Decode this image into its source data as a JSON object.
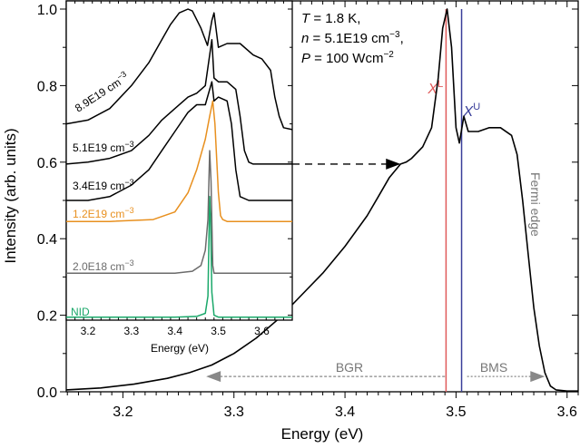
{
  "chart_data": [
    {
      "id": "main",
      "type": "line",
      "xlabel": "Energy (eV)",
      "ylabel": "Intensity (arb. units)",
      "xlim": [
        3.149,
        3.61
      ],
      "ylim": [
        0.0,
        1.0
      ],
      "xticks": [
        3.2,
        3.3,
        3.4,
        3.5,
        3.6
      ],
      "xtick_labels": [
        "3.2",
        "3.3",
        "3.4",
        "3.5",
        "3.6"
      ],
      "yticks": [
        0.0,
        0.2,
        0.4,
        0.6,
        0.8,
        1.0
      ],
      "ytick_labels": [
        "0.0",
        "0.2",
        "0.4",
        "0.6",
        "0.8",
        "1.0"
      ],
      "series": [
        {
          "name": "5.1E19 cm-3 spectrum",
          "color": "#000000",
          "x": [
            3.149,
            3.18,
            3.21,
            3.24,
            3.26,
            3.28,
            3.3,
            3.32,
            3.34,
            3.36,
            3.38,
            3.4,
            3.42,
            3.43,
            3.44,
            3.45,
            3.455,
            3.46,
            3.47,
            3.478,
            3.484,
            3.488,
            3.492,
            3.496,
            3.5,
            3.503,
            3.507,
            3.511,
            3.52,
            3.53,
            3.54,
            3.55,
            3.555,
            3.56,
            3.565,
            3.57,
            3.575,
            3.58,
            3.585,
            3.59,
            3.6,
            3.61
          ],
          "y": [
            0.005,
            0.01,
            0.02,
            0.035,
            0.05,
            0.07,
            0.1,
            0.14,
            0.19,
            0.25,
            0.31,
            0.38,
            0.46,
            0.51,
            0.56,
            0.595,
            0.6,
            0.61,
            0.64,
            0.69,
            0.82,
            0.95,
            1.0,
            0.9,
            0.69,
            0.65,
            0.72,
            0.68,
            0.68,
            0.69,
            0.69,
            0.67,
            0.62,
            0.5,
            0.36,
            0.22,
            0.12,
            0.05,
            0.015,
            0.005,
            0.002,
            0.002
          ]
        }
      ],
      "vlines": [
        {
          "label": "X",
          "sup": "L",
          "x": 3.491,
          "color": "#e05a5a"
        },
        {
          "label": "X",
          "sup": "U",
          "x": 3.505,
          "color": "#3a3f9a"
        }
      ],
      "annotations": {
        "conditions": [
          {
            "var": "T",
            "text": " = 1.8 K,"
          },
          {
            "var": "n",
            "text": " = 5.1E19 cm",
            "sup": "−3",
            "tail": ","
          },
          {
            "var": "P",
            "text": " = 100 Wcm",
            "sup": "−2",
            "tail": ""
          }
        ],
        "bgr_label": "BGR",
        "bms_label": "BMS",
        "fermi_label": "Fermi edge",
        "bgr_arrow": {
          "from_x": 3.49,
          "to_x": 3.275,
          "y": 0.04
        },
        "bms_arrow": {
          "from_x": 3.51,
          "to_x": 3.58,
          "y": 0.04
        },
        "inset_arrow": {
          "from_x": 3.149,
          "to_x": 3.45,
          "y": 0.595
        }
      }
    },
    {
      "id": "inset",
      "type": "line",
      "xlabel": "Energy (eV)",
      "xlim": [
        3.15,
        3.67
      ],
      "ylim": [
        0.19,
        1.0
      ],
      "xticks": [
        3.2,
        3.3,
        3.4,
        3.5,
        3.6
      ],
      "xtick_labels": [
        "3.2",
        "3.3",
        "3.4",
        "3.5",
        "3.6"
      ],
      "series": [
        {
          "name": "8.9E19 cm-3",
          "label": "8.9E19 cm",
          "sup": "−3",
          "color": "#000000",
          "x": [
            3.15,
            3.2,
            3.25,
            3.3,
            3.34,
            3.37,
            3.39,
            3.41,
            3.43,
            3.44,
            3.46,
            3.475,
            3.485,
            3.49,
            3.5,
            3.52,
            3.55,
            3.58,
            3.6,
            3.62,
            3.63,
            3.64,
            3.65,
            3.67
          ],
          "y": [
            0.7,
            0.71,
            0.74,
            0.8,
            0.86,
            0.92,
            0.96,
            0.99,
            1.0,
            0.995,
            0.95,
            0.905,
            0.97,
            0.99,
            0.9,
            0.91,
            0.91,
            0.88,
            0.87,
            0.84,
            0.77,
            0.72,
            0.69,
            0.685
          ]
        },
        {
          "name": "5.1E19 cm-3",
          "label": "5.1E19 cm",
          "sup": "−3",
          "color": "#000000",
          "x": [
            3.15,
            3.2,
            3.25,
            3.3,
            3.34,
            3.37,
            3.4,
            3.43,
            3.45,
            3.47,
            3.485,
            3.49,
            3.5,
            3.52,
            3.54,
            3.55,
            3.56,
            3.57,
            3.58,
            3.6,
            3.67
          ],
          "y": [
            0.595,
            0.6,
            0.61,
            0.63,
            0.67,
            0.71,
            0.74,
            0.77,
            0.78,
            0.8,
            0.92,
            0.82,
            0.81,
            0.81,
            0.79,
            0.72,
            0.63,
            0.6,
            0.595,
            0.595,
            0.595
          ]
        },
        {
          "name": "3.4E19 cm-3",
          "label": "3.4E19 cm",
          "sup": "−3",
          "color": "#000000",
          "x": [
            3.15,
            3.2,
            3.25,
            3.3,
            3.34,
            3.37,
            3.4,
            3.43,
            3.45,
            3.47,
            3.485,
            3.49,
            3.5,
            3.52,
            3.53,
            3.54,
            3.55,
            3.57,
            3.67
          ],
          "y": [
            0.5,
            0.5,
            0.51,
            0.54,
            0.58,
            0.63,
            0.68,
            0.73,
            0.75,
            0.75,
            0.81,
            0.76,
            0.77,
            0.76,
            0.7,
            0.58,
            0.51,
            0.5,
            0.5
          ]
        },
        {
          "name": "1.2E19 cm-3",
          "label": "1.2E19 cm",
          "sup": "−3",
          "color": "#e8901f",
          "x": [
            3.15,
            3.25,
            3.35,
            3.4,
            3.43,
            3.45,
            3.47,
            3.48,
            3.487,
            3.492,
            3.5,
            3.505,
            3.51,
            3.52,
            3.67
          ],
          "y": [
            0.445,
            0.445,
            0.45,
            0.47,
            0.52,
            0.58,
            0.66,
            0.72,
            0.76,
            0.7,
            0.52,
            0.46,
            0.45,
            0.445,
            0.445
          ]
        },
        {
          "name": "2.0E18 cm-3",
          "label": "2.0E18 cm",
          "sup": "−3",
          "color": "#6b6b6b",
          "x": [
            3.15,
            3.4,
            3.44,
            3.46,
            3.47,
            3.476,
            3.48,
            3.483,
            3.487,
            3.49,
            3.67
          ],
          "y": [
            0.31,
            0.31,
            0.315,
            0.33,
            0.37,
            0.45,
            0.63,
            0.55,
            0.33,
            0.31,
            0.31
          ]
        },
        {
          "name": "NID",
          "label": "NID",
          "sup": "",
          "color": "#1aa86a",
          "x": [
            3.15,
            3.4,
            3.45,
            3.47,
            3.476,
            3.48,
            3.482,
            3.485,
            3.49,
            3.5,
            3.67
          ],
          "y": [
            0.195,
            0.195,
            0.197,
            0.205,
            0.25,
            0.51,
            0.45,
            0.26,
            0.2,
            0.195,
            0.195
          ]
        }
      ]
    }
  ]
}
